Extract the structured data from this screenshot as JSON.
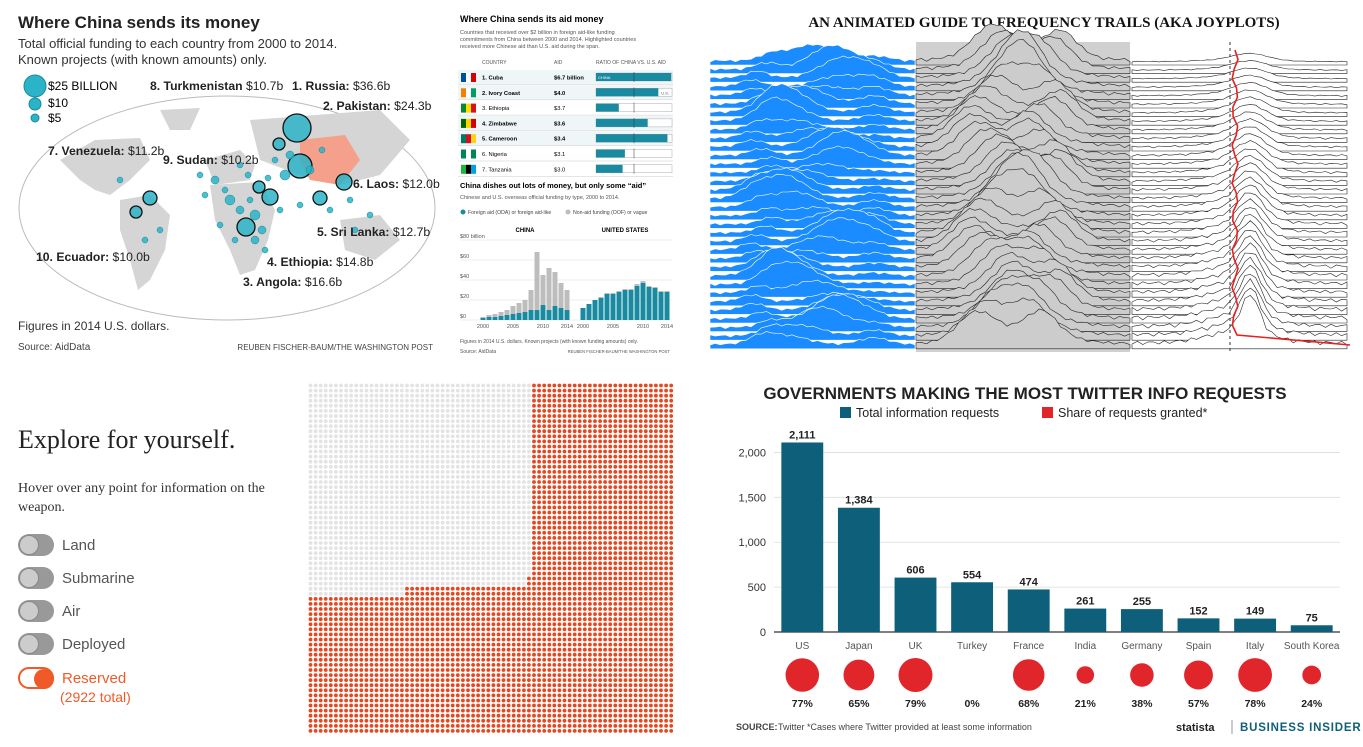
{
  "china_map": {
    "title": "Where China sends its money",
    "subtitle": "Total official funding to each country from 2000 to 2014.",
    "subtitle2": "Known projects (with known amounts) only.",
    "legend": [
      "$25 BILLION",
      "$10",
      "$5"
    ],
    "labels": [
      {
        "name": "1. Russia:",
        "value": "$36.6b"
      },
      {
        "name": "2. Pakistan:",
        "value": "$24.3b"
      },
      {
        "name": "3. Angola:",
        "value": "$16.6b"
      },
      {
        "name": "4. Ethiopia:",
        "value": "$14.8b"
      },
      {
        "name": "5. Sri Lanka:",
        "value": "$12.7b"
      },
      {
        "name": "6. Laos:",
        "value": "$12.0b"
      },
      {
        "name": "7. Venezuela:",
        "value": "$11.2b"
      },
      {
        "name": "8. Turkmenistan",
        "value": "$10.7b"
      },
      {
        "name": "9. Sudan:",
        "value": "$10.2b"
      },
      {
        "name": "10. Ecuador:",
        "value": "$10.0b"
      }
    ],
    "note": "Figures in 2014 U.S. dollars.",
    "source": "Source: AidData",
    "credit": "REUBEN FISCHER-BAUM/THE WASHINGTON POST",
    "colors": {
      "bubble": "#2bb3c7",
      "china": "#f4a08a",
      "land": "#d5d5d5"
    }
  },
  "aid_table": {
    "title": "Where China sends its aid money",
    "desc1": "Countries that received over $2 billion in foreign aid-like funding",
    "desc2": "commitments from China between 2000 and 2014. Highlighted countries",
    "desc3": "received more Chinese aid than U.S. aid during the span.",
    "headers": [
      "COUNTRY",
      "AID",
      "RATIO OF CHINA VS. U.S. AID"
    ],
    "rows": [
      {
        "country": "1. Cuba",
        "aid": "$6.7 billion",
        "ratio": 0.99,
        "bold": true
      },
      {
        "country": "2. Ivory Coast",
        "aid": "$4.0",
        "ratio": 0.82,
        "bold": true
      },
      {
        "country": "3. Ethiopia",
        "aid": "$3.7",
        "ratio": 0.3,
        "bold": false
      },
      {
        "country": "4. Zimbabwe",
        "aid": "$3.6",
        "ratio": 0.68,
        "bold": true
      },
      {
        "country": "5. Cameroon",
        "aid": "$3.4",
        "ratio": 0.94,
        "bold": true
      },
      {
        "country": "6. Nigeria",
        "aid": "$3.1",
        "ratio": 0.38,
        "bold": false
      },
      {
        "country": "7. Tanzania",
        "aid": "$3.0",
        "ratio": 0.35,
        "bold": false
      }
    ],
    "inbar_china": "CHINA",
    "inbar_us": "U.S.",
    "subhead": "China dishes out lots of money, but only some “aid”",
    "subdesc": "Chinese and U.S. overseas official funding by type, 2000 to 2014.",
    "legend": [
      "Foreign aid (ODA) or foreign aid-like",
      "Non-aid funding (OOF) or vague"
    ],
    "note": "Figures in 2014 U.S. dollars. Known projects (with known funding amounts) only.",
    "source": "Source: AidData",
    "credit": "REUBEN FISCHER-BAUM/THE WASHINGTON POST",
    "colors": {
      "aid": "#1a8aa0",
      "nonaid": "#bdbdbd"
    }
  },
  "aid_chart": {
    "type": "bar",
    "stacked": true,
    "years": [
      2000,
      2001,
      2002,
      2003,
      2004,
      2005,
      2006,
      2007,
      2008,
      2009,
      2010,
      2011,
      2012,
      2013,
      2014
    ],
    "xticks": [
      "2000",
      "2005",
      "2010",
      "2014"
    ],
    "yticks": [
      "$0",
      "$20",
      "$40",
      "$60",
      "$80 billion"
    ],
    "ylim": [
      0,
      80
    ],
    "panels": [
      {
        "title": "CHINA",
        "aid": [
          2,
          3,
          3,
          4,
          5,
          6,
          7,
          8,
          10,
          10,
          15,
          10,
          14,
          12,
          10
        ],
        "nonaid": [
          1,
          2,
          3,
          4,
          5,
          8,
          10,
          12,
          20,
          58,
          30,
          42,
          34,
          25,
          20
        ]
      },
      {
        "title": "UNITED STATES",
        "aid": [
          12,
          16,
          20,
          22,
          26,
          26,
          28,
          30,
          30,
          34,
          37,
          33,
          32,
          28,
          28
        ],
        "nonaid": [
          0,
          0,
          0,
          1,
          1,
          1,
          1,
          1,
          1,
          2,
          2,
          1,
          1,
          1,
          1
        ]
      }
    ]
  },
  "joyplot": {
    "title": "AN ANIMATED GUIDE TO FREQUENCY TRAILS (AKA JOYPLOTS)",
    "colors": {
      "blue": "#1a8cff",
      "gray": "#ccc",
      "red": "#e82020"
    }
  },
  "explore": {
    "title": "Explore for yourself.",
    "hint": "Hover over any point for information on the weapon.",
    "toggles": [
      {
        "label": "Land",
        "on": false
      },
      {
        "label": "Submarine",
        "on": false
      },
      {
        "label": "Air",
        "on": false
      },
      {
        "label": "Deployed",
        "on": false
      },
      {
        "label": "Reserved",
        "on": true
      }
    ],
    "reserved_total": "(2922 total)",
    "colors": {
      "active": "#f05a28",
      "inactive": "#e0e0e0"
    }
  },
  "dot_grid": {
    "share_reserved": 0.42,
    "colors": {
      "filled": "#e8461e",
      "empty": "#e3e3e3"
    }
  },
  "twitter": {
    "title": "GOVERNMENTS MAKING THE MOST TWITTER INFO REQUESTS",
    "legend": [
      "Total information requests",
      "Share of requests granted*"
    ],
    "source_label": "SOURCE:",
    "source": "Twitter   *Cases where Twitter provided at least some information",
    "brand1": "statista",
    "brand2": "BUSINESS INSIDER",
    "colors": {
      "bar": "#0e5f7a",
      "share": "#e0252b"
    }
  },
  "chart_data": [
    {
      "type": "bar",
      "title": "GOVERNMENTS MAKING THE MOST TWITTER INFO REQUESTS",
      "categories": [
        "US",
        "Japan",
        "UK",
        "Turkey",
        "France",
        "India",
        "Germany",
        "Spain",
        "Italy",
        "South Korea"
      ],
      "series": [
        {
          "name": "Total information requests",
          "values": [
            2111,
            1384,
            606,
            554,
            474,
            261,
            255,
            152,
            149,
            75
          ],
          "labels": [
            "2,111",
            "1,384",
            "606",
            "554",
            "474",
            "261",
            "255",
            "152",
            "149",
            "75"
          ]
        },
        {
          "name": "Share of requests granted*",
          "values": [
            77,
            65,
            79,
            0,
            68,
            21,
            38,
            57,
            78,
            24
          ],
          "labels": [
            "77%",
            "65%",
            "79%",
            "0%",
            "68%",
            "21%",
            "38%",
            "57%",
            "78%",
            "24%"
          ]
        }
      ],
      "yticks": [
        "0",
        "500",
        "1,000",
        "1,500",
        "2,000"
      ],
      "ylim": [
        0,
        2250
      ]
    }
  ]
}
